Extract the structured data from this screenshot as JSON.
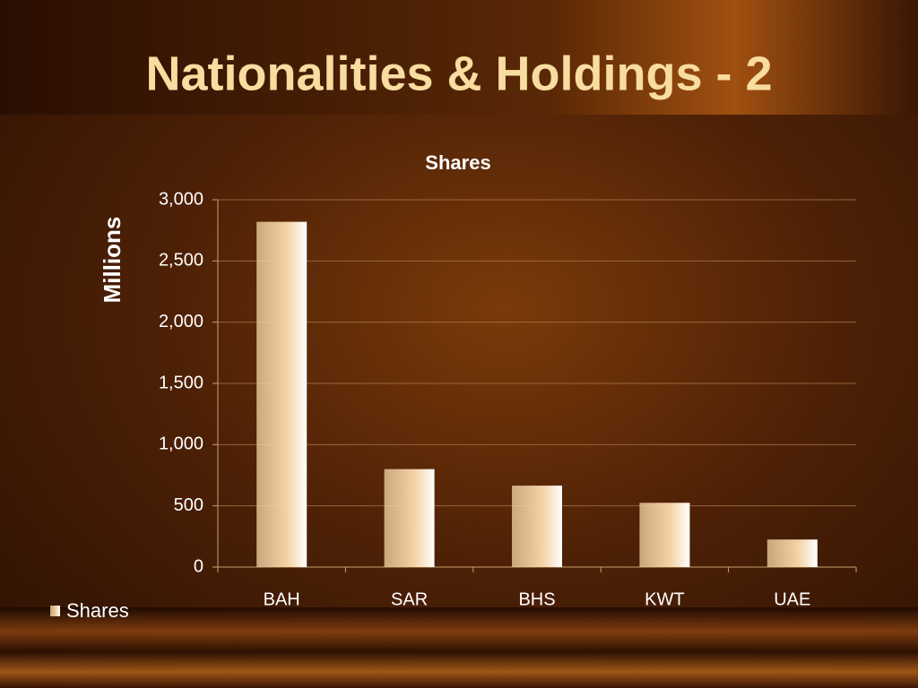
{
  "chart_data": {
    "type": "bar",
    "page_title": "Nationalities & Holdings - 2",
    "title": "Shares",
    "y_label": "Millions",
    "categories": [
      "BAH",
      "SAR",
      "BHS",
      "KWT",
      "UAE"
    ],
    "series": [
      {
        "name": "Shares",
        "color": "#f3d2a4",
        "values": [
          2820,
          800,
          665,
          525,
          225
        ]
      }
    ],
    "ylim": [
      0,
      3000
    ],
    "yticks": [
      0,
      500,
      {
        "value": 1000,
        "label": "1,000"
      },
      {
        "value": 1500,
        "label": "1,500"
      },
      {
        "value": 2000,
        "label": "2,000"
      },
      {
        "value": 2500,
        "label": "2,500"
      },
      {
        "value": 3000,
        "label": "3,000"
      }
    ],
    "grid": true,
    "legend": "bottom-left"
  }
}
